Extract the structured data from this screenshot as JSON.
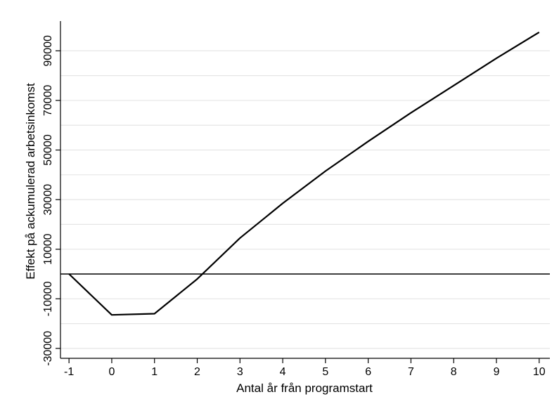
{
  "chart_data": {
    "type": "line",
    "xlabel": "Antal år från programstart",
    "ylabel": "Effekt på ackumulerad arbetsinkomst",
    "xlim": [
      -1.2,
      10.25
    ],
    "ylim": [
      -34000,
      102000
    ],
    "x_ticks": [
      -1,
      0,
      1,
      2,
      3,
      4,
      5,
      6,
      7,
      8,
      9,
      10
    ],
    "y_ticks": [
      -30000,
      -10000,
      10000,
      30000,
      50000,
      70000,
      90000
    ],
    "y_gridlines": [
      -30000,
      -20000,
      -10000,
      0,
      10000,
      20000,
      30000,
      40000,
      50000,
      60000,
      70000,
      80000,
      90000
    ],
    "reference_line": 0,
    "grid": true,
    "series": [
      {
        "x": [
          -1,
          0,
          1,
          2,
          3,
          4,
          5,
          6,
          7,
          8,
          9,
          10
        ],
        "values": [
          0,
          -16500,
          -16000,
          -2000,
          14500,
          28500,
          41500,
          53500,
          65000,
          76000,
          87000,
          97500
        ]
      }
    ],
    "colors": {
      "line": "#000000",
      "grid": "#e6e6e6",
      "background": "#ffffff"
    }
  }
}
